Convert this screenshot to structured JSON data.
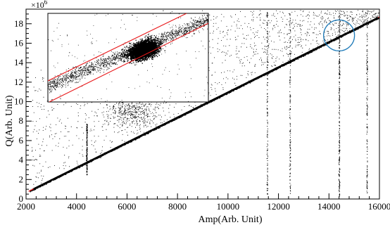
{
  "chart_data": {
    "type": "scatter",
    "xlabel": "Amp(Arb. Unit)",
    "ylabel": "Q(Arb. Unit)",
    "xlim": [
      2000,
      16000
    ],
    "ylim": [
      0,
      19.5
    ],
    "y_multiplier_base": "×10",
    "y_multiplier_exp": "6",
    "x_ticks": [
      "2000",
      "4000",
      "6000",
      "8000",
      "10000",
      "12000",
      "14000",
      "16000"
    ],
    "y_ticks": [
      "0",
      "2",
      "4",
      "6",
      "8",
      "10",
      "12",
      "14",
      "16",
      "18"
    ],
    "x_tick_values": [
      2000,
      4000,
      6000,
      8000,
      10000,
      12000,
      14000,
      16000
    ],
    "y_tick_values": [
      0,
      2,
      4,
      6,
      8,
      10,
      12,
      14,
      16,
      18
    ],
    "grid": false,
    "fit_line": {
      "color": "#e8191b",
      "points": [
        [
          2100,
          0.78
        ],
        [
          16000,
          18.7
        ]
      ]
    },
    "main_band": {
      "description_points": [
        [
          2200,
          0.9
        ],
        [
          4000,
          3.5
        ],
        [
          6000,
          6.0
        ],
        [
          8000,
          8.6
        ],
        [
          10000,
          11.1
        ],
        [
          12000,
          13.7
        ],
        [
          14000,
          16.3
        ],
        [
          16000,
          18.7
        ]
      ]
    },
    "vertical_streaks_x": [
      4400,
      11550,
      12450,
      14400,
      15500
    ],
    "highlight_circle": {
      "x": 14400,
      "y": 16.8,
      "color": "#1e7ab8"
    },
    "inset": {
      "description": "zoomed scatter with elliptical cluster and red boundary lines",
      "cluster_center": "upper-middle",
      "line_color": "#e8191b"
    },
    "colors": {
      "points": "#000000",
      "fit": "#e8191b",
      "circle": "#1e7ab8"
    }
  }
}
